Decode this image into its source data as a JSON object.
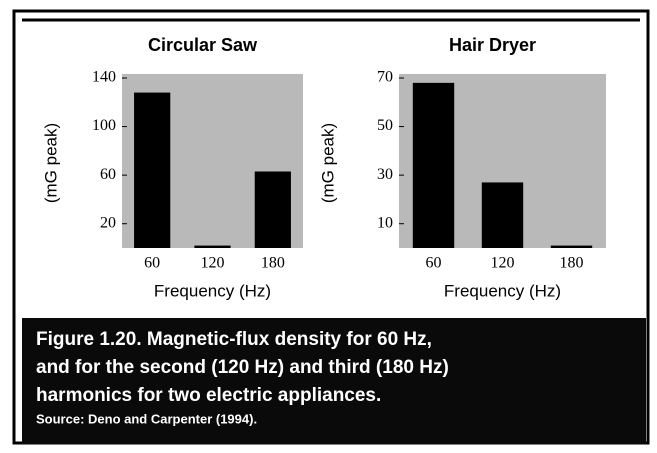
{
  "chart_data": [
    {
      "type": "bar",
      "title": "Circular  Saw",
      "ylabel": "(mG peak)",
      "xlabel": "Frequency (Hz)",
      "categories": [
        "60",
        "120",
        "180"
      ],
      "values": [
        128,
        2,
        63
      ],
      "color": "#000000",
      "ylim": [
        0,
        140
      ],
      "yticks": [
        20,
        60,
        100,
        140
      ],
      "background": "#b9b9b9"
    },
    {
      "type": "bar",
      "title": "Hair  Dryer",
      "ylabel": "(mG peak)",
      "xlabel": "Frequency (Hz)",
      "categories": [
        "60",
        "120",
        "180"
      ],
      "values": [
        68,
        27,
        1
      ],
      "color": "#000000",
      "ylim": [
        0,
        70
      ],
      "yticks": [
        10,
        30,
        50,
        70
      ],
      "background": "#b9b9b9"
    }
  ],
  "caption": {
    "lines": [
      "Figure 1.20. Magnetic-flux density for 60 Hz,",
      "and for the second (120 Hz) and third (180 Hz)",
      "harmonics for two electric appliances."
    ],
    "source": "Source: Deno and Carpenter (1994)."
  }
}
